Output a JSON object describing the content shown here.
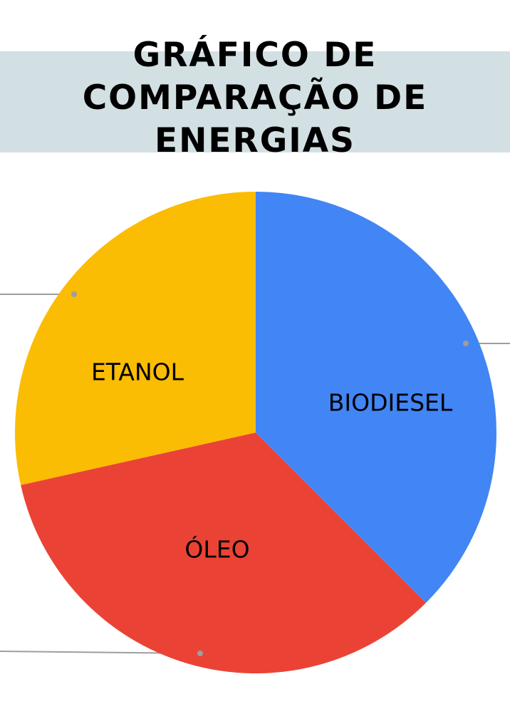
{
  "title": {
    "lines": [
      "GRÁFICO DE",
      "COMPARAÇÃO DE",
      "ENERGIAS"
    ]
  },
  "chart_data": {
    "type": "pie",
    "title": "GRÁFICO DE COMPARAÇÃO DE ENERGIAS",
    "start_angle_deg": 0,
    "direction": "clockwise",
    "slices": [
      {
        "label": "BIODIESEL",
        "value": 37.5,
        "color": "#4285f4"
      },
      {
        "label": "ÓLEO",
        "value": 34.0,
        "color": "#ea4335"
      },
      {
        "label": "ETANOL",
        "value": 28.5,
        "color": "#fbbc04"
      }
    ],
    "legend": "none"
  }
}
